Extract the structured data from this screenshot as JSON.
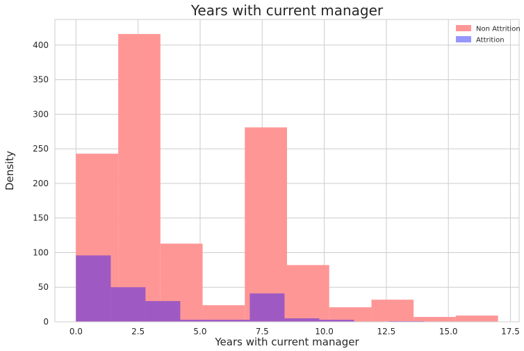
{
  "chart_data": {
    "type": "bar",
    "title": "Years with current manager",
    "xlabel": "Years with current manager",
    "ylabel": "Density",
    "xlim": [
      -0.85,
      17.85
    ],
    "ylim": [
      0,
      437
    ],
    "xticks": [
      0.0,
      2.5,
      5.0,
      7.5,
      10.0,
      12.5,
      15.0,
      17.5
    ],
    "xtick_labels": [
      "0.0",
      "2.5",
      "5.0",
      "7.5",
      "10.0",
      "12.5",
      "15.0",
      "17.5"
    ],
    "yticks": [
      0,
      50,
      100,
      150,
      200,
      250,
      300,
      350,
      400
    ],
    "ytick_labels": [
      "0",
      "50",
      "100",
      "150",
      "200",
      "250",
      "300",
      "350",
      "400"
    ],
    "grid": true,
    "legend_position": "top-right",
    "series": [
      {
        "name": "Non Attrition",
        "color": "#ff9696",
        "bins": [
          {
            "x0": 0.0,
            "x1": 1.7,
            "value": 243
          },
          {
            "x0": 1.7,
            "x1": 3.4,
            "value": 416
          },
          {
            "x0": 3.4,
            "x1": 5.1,
            "value": 113
          },
          {
            "x0": 5.1,
            "x1": 6.8,
            "value": 24
          },
          {
            "x0": 6.8,
            "x1": 8.5,
            "value": 281
          },
          {
            "x0": 8.5,
            "x1": 10.2,
            "value": 82
          },
          {
            "x0": 10.2,
            "x1": 11.9,
            "value": 21
          },
          {
            "x0": 11.9,
            "x1": 13.6,
            "value": 32
          },
          {
            "x0": 13.6,
            "x1": 15.3,
            "value": 7
          },
          {
            "x0": 15.3,
            "x1": 17.0,
            "value": 9
          }
        ]
      },
      {
        "name": "Attrition",
        "color": "#9696ff",
        "bins": [
          {
            "x0": 0.0,
            "x1": 1.4,
            "value": 96
          },
          {
            "x0": 1.4,
            "x1": 2.8,
            "value": 50
          },
          {
            "x0": 2.8,
            "x1": 4.2,
            "value": 30
          },
          {
            "x0": 4.2,
            "x1": 5.6,
            "value": 3
          },
          {
            "x0": 5.6,
            "x1": 7.0,
            "value": 3
          },
          {
            "x0": 7.0,
            "x1": 8.4,
            "value": 41
          },
          {
            "x0": 8.4,
            "x1": 9.8,
            "value": 5
          },
          {
            "x0": 9.8,
            "x1": 11.2,
            "value": 3
          },
          {
            "x0": 11.2,
            "x1": 12.6,
            "value": 0
          },
          {
            "x0": 12.6,
            "x1": 14.0,
            "value": 1
          }
        ]
      }
    ],
    "overlap_color": "#9a57c4"
  }
}
